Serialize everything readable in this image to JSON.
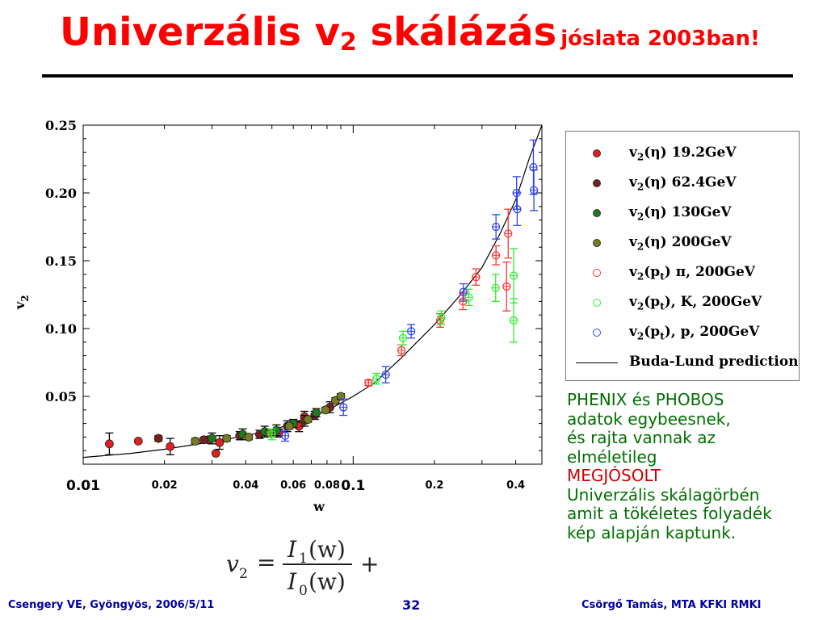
{
  "title": {
    "main": "Univerzális v",
    "main_sub": "2",
    "main_end": "skálázás",
    "subtitle": "jóslata 2003ban!"
  },
  "chart_data": {
    "type": "scatter",
    "xlabel": "w",
    "ylabel": "v",
    "ylabel_sub": "2",
    "x_scale": "log",
    "xlim": [
      0.01,
      0.5
    ],
    "ylim": [
      0.0,
      0.25
    ],
    "x_ticks": [
      {
        "value": 0.01,
        "label": "0.01",
        "major": true
      },
      {
        "value": 0.02,
        "label": "0.02",
        "major": false
      },
      {
        "value": 0.04,
        "label": "0.04",
        "major": false
      },
      {
        "value": 0.06,
        "label": "0.06",
        "major": false
      },
      {
        "value": 0.08,
        "label": "0.08",
        "major": false
      },
      {
        "value": 0.1,
        "label": "0.1",
        "major": true
      },
      {
        "value": 0.2,
        "label": "0.2",
        "major": false
      },
      {
        "value": 0.4,
        "label": "0.4",
        "major": false
      }
    ],
    "y_ticks": [
      {
        "value": 0.05,
        "label": "0.05"
      },
      {
        "value": 0.1,
        "label": "0.10"
      },
      {
        "value": 0.15,
        "label": "0.15"
      },
      {
        "value": 0.2,
        "label": "0.20"
      },
      {
        "value": 0.25,
        "label": "0.25"
      }
    ],
    "grid": false,
    "legend_position": "right",
    "series": [
      {
        "name": "v2(η) 19.2GeV",
        "label_main": "v",
        "label_sub": "2",
        "label_rest": "(η) 19.2GeV",
        "color": "#dd2222",
        "filled": true,
        "points": [
          [
            0.0125,
            0.015,
            0.008
          ],
          [
            0.016,
            0.017,
            0
          ],
          [
            0.021,
            0.013,
            0.006
          ],
          [
            0.029,
            0.018,
            0
          ],
          [
            0.031,
            0.008,
            0
          ],
          [
            0.032,
            0.016,
            0.005
          ],
          [
            0.053,
            0.023,
            0.003
          ],
          [
            0.063,
            0.028,
            0.004
          ],
          [
            0.066,
            0.035,
            0.004
          ]
        ]
      },
      {
        "name": "v2(η) 62.4GeV",
        "label_main": "v",
        "label_sub": "2",
        "label_rest": "(η) 62.4GeV",
        "color": "#7a1f1f",
        "filled": true,
        "points": [
          [
            0.019,
            0.019,
            0.002
          ],
          [
            0.028,
            0.018,
            0.002
          ],
          [
            0.038,
            0.021,
            0.003
          ],
          [
            0.045,
            0.022,
            0.003
          ],
          [
            0.057,
            0.028,
            0.004
          ],
          [
            0.066,
            0.032,
            0.004
          ],
          [
            0.072,
            0.036,
            0.003
          ],
          [
            0.082,
            0.042,
            0.004
          ]
        ]
      },
      {
        "name": "v2(η) 130GeV",
        "label_main": "v",
        "label_sub": "2",
        "label_rest": "(η) 130GeV",
        "color": "#1f7a1f",
        "filled": true,
        "points": [
          [
            0.03,
            0.019,
            0.004
          ],
          [
            0.039,
            0.022,
            0.004
          ],
          [
            0.047,
            0.024,
            0.004
          ],
          [
            0.052,
            0.025,
            0.004
          ],
          [
            0.06,
            0.03,
            0.003
          ],
          [
            0.073,
            0.038,
            0.003
          ]
        ]
      },
      {
        "name": "v2(η) 200GeV",
        "label_main": "v",
        "label_sub": "2",
        "label_rest": "(η) 200GeV",
        "color": "#7a7a1f",
        "filled": true,
        "points": [
          [
            0.026,
            0.017,
            0.002
          ],
          [
            0.034,
            0.019,
            0.002
          ],
          [
            0.041,
            0.02,
            0.002
          ],
          [
            0.049,
            0.023,
            0.002
          ],
          [
            0.058,
            0.028,
            0.002
          ],
          [
            0.068,
            0.033,
            0.002
          ],
          [
            0.079,
            0.04,
            0.002
          ],
          [
            0.086,
            0.047,
            0.002
          ],
          [
            0.09,
            0.05,
            0.002
          ]
        ]
      },
      {
        "name": "v2(pt) π, 200GeV",
        "label_main": "v",
        "label_sub": "2",
        "label_rest2_sub": "t",
        "label_rest1": "(p",
        "label_rest2": ") π, 200GeV",
        "color": "#ff3333",
        "filled": false,
        "points": [
          [
            0.114,
            0.06,
            0.002
          ],
          [
            0.151,
            0.084,
            0.004
          ],
          [
            0.21,
            0.106,
            0.005
          ],
          [
            0.255,
            0.12,
            0.006
          ],
          [
            0.285,
            0.138,
            0.006
          ],
          [
            0.338,
            0.154,
            0.007
          ],
          [
            0.375,
            0.17,
            0.018
          ],
          [
            0.37,
            0.131,
            0.018
          ]
        ]
      },
      {
        "name": "v2(pt), K, 200GeV",
        "label_main": "v",
        "label_sub": "2",
        "label_rest2_sub": "t",
        "label_rest1": "(p",
        "label_rest2": "), K, 200GeV",
        "color": "#33ee33",
        "filled": false,
        "points": [
          [
            0.05,
            0.022,
            0.004
          ],
          [
            0.122,
            0.063,
            0.004
          ],
          [
            0.153,
            0.093,
            0.005
          ],
          [
            0.212,
            0.108,
            0.005
          ],
          [
            0.268,
            0.123,
            0.006
          ],
          [
            0.337,
            0.13,
            0.01
          ],
          [
            0.393,
            0.139,
            0.02
          ],
          [
            0.393,
            0.106,
            0.016
          ]
        ]
      },
      {
        "name": "v2(pt), p, 200GeV",
        "label_main": "v",
        "label_sub": "2",
        "label_rest2_sub": "t",
        "label_rest1": "(p",
        "label_rest2": "), p, 200GeV",
        "color": "#3344ee",
        "filled": false,
        "points": [
          [
            0.056,
            0.021,
            0.004
          ],
          [
            0.092,
            0.042,
            0.006
          ],
          [
            0.132,
            0.066,
            0.006
          ],
          [
            0.164,
            0.098,
            0.005
          ],
          [
            0.256,
            0.127,
            0.006
          ],
          [
            0.338,
            0.175,
            0.009
          ],
          [
            0.405,
            0.188,
            0.012
          ],
          [
            0.403,
            0.2,
            0.012
          ],
          [
            0.467,
            0.202,
            0.015
          ],
          [
            0.465,
            0.219,
            0.02
          ]
        ]
      }
    ],
    "curve": {
      "name": "Buda-Lund prediction",
      "color": "#000000",
      "points": [
        [
          0.01,
          0.005
        ],
        [
          0.015,
          0.008
        ],
        [
          0.02,
          0.011
        ],
        [
          0.03,
          0.0165
        ],
        [
          0.04,
          0.021
        ],
        [
          0.05,
          0.0252
        ],
        [
          0.06,
          0.03
        ],
        [
          0.07,
          0.0345
        ],
        [
          0.08,
          0.0395
        ],
        [
          0.1,
          0.05
        ],
        [
          0.12,
          0.06
        ],
        [
          0.15,
          0.078
        ],
        [
          0.2,
          0.103
        ],
        [
          0.25,
          0.125
        ],
        [
          0.3,
          0.145
        ],
        [
          0.35,
          0.17
        ],
        [
          0.4,
          0.195
        ],
        [
          0.45,
          0.226
        ],
        [
          0.5,
          0.25
        ]
      ]
    }
  },
  "legend_line_label": "Buda-Lund prediction",
  "description": {
    "line1": "PHENIX és PHOBOS",
    "line2": "adatok egybeesnek,",
    "line3": "és rajta vannak az",
    "line4": "elméletileg",
    "highlight": "MEGJÓSOLT",
    "line5": "Univerzális skálagörbén",
    "line6": "amit a tökéletes folyadék",
    "line7": "kép alapján kaptunk."
  },
  "formula": {
    "lhs": "v",
    "lhs_sub": "2",
    "numerator": "I",
    "num_sub": "1",
    "num_arg": "(w)",
    "denominator": "I",
    "den_sub": "0",
    "den_arg": "(w)",
    "trailing": "+"
  },
  "footer": {
    "left": "Csengery VE, Gyöngyös, 2006/5/11",
    "page": "32",
    "right": "Csörgő Tamás, MTA KFKI RMKI"
  }
}
